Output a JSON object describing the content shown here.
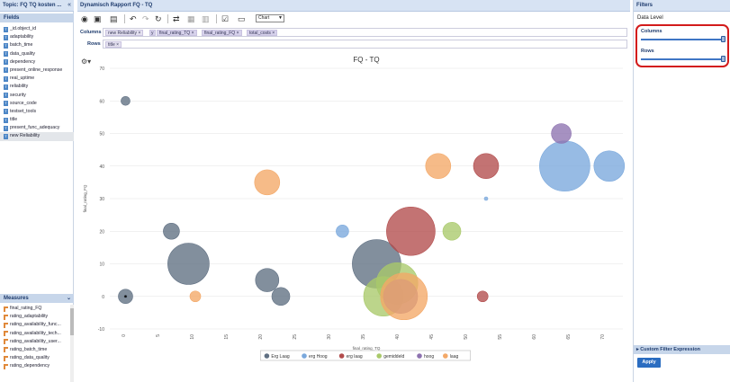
{
  "topic": {
    "title": "Topic: FQ TQ kosten ..."
  },
  "fields": {
    "header": "Fields",
    "items": [
      "_id.object_id",
      "adaptability",
      "batch_time",
      "data_quality",
      "dependency",
      "present_online_response",
      "real_uptime",
      "reliability",
      "security",
      "source_code",
      "testset_tools",
      "title",
      "present_func_adequacy",
      "new Reliability"
    ]
  },
  "measures": {
    "header": "Measures",
    "items": [
      "final_rating_FQ",
      "rating_adaptability",
      "rating_availability_func...",
      "rating_availability_tech...",
      "rating_availability_user...",
      "rating_batch_time",
      "rating_data_quality",
      "rating_dependency"
    ]
  },
  "report": {
    "title": "Dynamisch Rapport FQ - TQ"
  },
  "toolbar": {
    "chart_type": "Chart"
  },
  "shelves": {
    "columns_label": "Columns",
    "rows_label": "Rows",
    "columns_pills": [
      "new Reliability",
      "y",
      "final_rating_TQ",
      "final_rating_FQ",
      "total_costs"
    ],
    "rows_pills": [
      "title"
    ]
  },
  "chart_data": {
    "type": "scatter",
    "title": "FQ - TQ",
    "xlabel": "final_rating_TQ",
    "ylabel": "final_rating_FQ",
    "xlim": [
      -2,
      73
    ],
    "ylim": [
      -10,
      70
    ],
    "x_ticks": [
      0,
      5,
      10,
      15,
      20,
      25,
      30,
      35,
      40,
      45,
      50,
      55,
      60,
      65,
      70
    ],
    "y_ticks": [
      -10,
      0,
      10,
      20,
      30,
      40,
      50,
      60,
      70
    ],
    "grid": true,
    "legend_position": "bottom",
    "series": [
      {
        "name": "Erg Laag",
        "color": "#5f6f82",
        "points": [
          {
            "x": 0.3,
            "y": 60,
            "r": 5
          },
          {
            "x": 7,
            "y": 20,
            "r": 9
          },
          {
            "x": 9.5,
            "y": 10,
            "r": 23
          },
          {
            "x": 0.3,
            "y": 0,
            "r": 8
          },
          {
            "x": 21,
            "y": 5,
            "r": 13
          },
          {
            "x": 23,
            "y": 0,
            "r": 10
          },
          {
            "x": 37,
            "y": 10,
            "r": 27
          },
          {
            "x": 0.3,
            "y": 0,
            "r": 1.5
          }
        ]
      },
      {
        "name": "erg Hoog",
        "color": "#7aa8dc",
        "points": [
          {
            "x": 32,
            "y": 20,
            "r": 7
          },
          {
            "x": 64.5,
            "y": 40,
            "r": 28
          },
          {
            "x": 71,
            "y": 40,
            "r": 17
          },
          {
            "x": 53,
            "y": 30,
            "r": 2
          }
        ]
      },
      {
        "name": "erg laag",
        "color": "#b24c4c",
        "points": [
          {
            "x": 42,
            "y": 20,
            "r": 27
          },
          {
            "x": 53,
            "y": 40,
            "r": 14
          },
          {
            "x": 52.5,
            "y": 0,
            "r": 6
          }
        ]
      },
      {
        "name": "gemiddeld",
        "color": "#a9c96a",
        "points": [
          {
            "x": 48,
            "y": 20,
            "r": 10
          },
          {
            "x": 38,
            "y": 0,
            "r": 22
          },
          {
            "x": 40,
            "y": 4,
            "r": 23
          }
        ]
      },
      {
        "name": "hoog",
        "color": "#8d72b0",
        "points": [
          {
            "x": 40.5,
            "y": 0,
            "r": 19
          },
          {
            "x": 64,
            "y": 50,
            "r": 11
          }
        ]
      },
      {
        "name": "laag",
        "color": "#f3a867",
        "points": [
          {
            "x": 10.5,
            "y": 0,
            "r": 6
          },
          {
            "x": 21,
            "y": 35,
            "r": 14
          },
          {
            "x": 46,
            "y": 40,
            "r": 14
          },
          {
            "x": 41,
            "y": 0,
            "r": 26
          }
        ]
      }
    ]
  },
  "filters": {
    "title": "Filters",
    "data_level": "Data Level",
    "columns_label": "Columns",
    "rows_label": "Rows",
    "columns_level": 1,
    "rows_level": 1,
    "custom_filter_label": "Custom Filter Expression",
    "apply_label": "Apply"
  }
}
